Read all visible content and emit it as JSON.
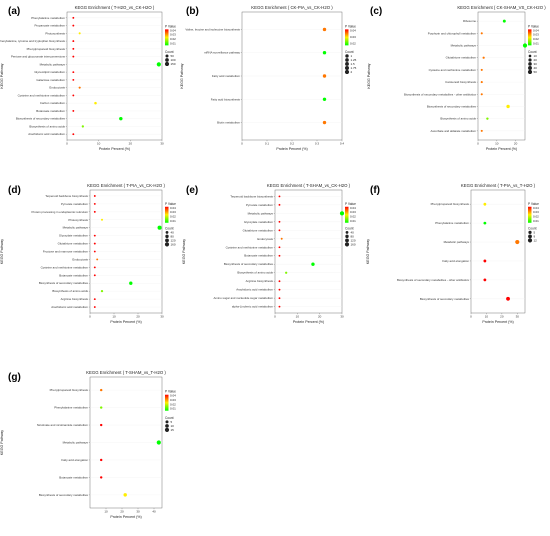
{
  "panels": [
    {
      "label": "(a)",
      "title": "KEGG Enrichment ( T-H2O_vs_CK-H2O )"
    },
    {
      "label": "(b)",
      "title": "KEGG Enrichment ( CK-PIA_vs_CK-H2O )"
    },
    {
      "label": "(c)",
      "title": "KEGG Enrichment ( CK-SHAM_VS_CK-H2O )"
    },
    {
      "label": "(d)",
      "title": "KEGG Enrichment ( T-PIA_vs_CK-H2O )"
    },
    {
      "label": "(e)",
      "title": "KEGG Enrichment ( T-SHAM_vs_CK-H2O )"
    },
    {
      "label": "(f)",
      "title": "KEGG Enrichment ( T-PIA_vs_T-H2O )"
    },
    {
      "label": "(g)",
      "title": "KEGG Enrichment ( T-SHAM_vs_T-H2O )"
    }
  ],
  "colors": {
    "low_p": "#00ff00",
    "mid_p": "#ffee00",
    "high_p": "#ff0000"
  },
  "chart_data": [
    {
      "type": "scatter",
      "title": "KEGG Enrichment ( T-H2O_vs_CK-H2O )",
      "xlabel": "Protein Percent (%)",
      "ylabel": "KEGG Pathway",
      "xlim": [
        0,
        30
      ],
      "xticks": [
        0,
        10,
        20,
        30
      ],
      "legend": {
        "count_title": "Count",
        "count_values": [
          50,
          100,
          150
        ],
        "p_title": "P Value",
        "p_ticks": [
          0.04,
          0.03,
          0.02,
          0.01
        ]
      },
      "categories": [
        "Phenylalanine metabolism",
        "Propanoate metabolism",
        "Photosynthesis",
        "Phenylalanine, tyrosine and tryptophan biosynthesis",
        "Phenylpropanoid biosynthesis",
        "Pentose and glucuronate interconversions",
        "Metabolic pathways",
        "Glycerolipid metabolism",
        "Galactose metabolism",
        "Endocytosis",
        "Cysteine and methionine metabolism",
        "Carbon metabolism",
        "Butanoate metabolism",
        "Biosynthesis of secondary metabolites",
        "Biosynthesis of amino acids",
        "Arachidonic acid metabolism"
      ],
      "x": [
        2,
        2,
        4,
        2,
        2,
        2,
        29,
        2,
        2,
        4,
        2,
        9,
        2,
        17,
        5,
        2
      ],
      "count": [
        4,
        4,
        8,
        4,
        4,
        4,
        150,
        4,
        4,
        10,
        4,
        25,
        4,
        80,
        15,
        4
      ],
      "pvalue": [
        0.05,
        0.05,
        0.03,
        0.05,
        0.05,
        0.05,
        0.01,
        0.05,
        0.05,
        0.04,
        0.05,
        0.03,
        0.05,
        0.01,
        0.02,
        0.05
      ]
    },
    {
      "type": "scatter",
      "title": "KEGG Enrichment ( CK-PIA_vs_CK-H2O )",
      "xlabel": "Protein Percent (%)",
      "ylabel": "KEGG Pathway",
      "xlim": [
        0.0,
        0.4
      ],
      "xticks": [
        0.0,
        0.1,
        0.2,
        0.3,
        0.4
      ],
      "legend": {
        "count_title": "Count",
        "count_values": [
          1.0,
          1.25,
          1.5,
          1.75,
          2.0
        ],
        "p_title": "P Value",
        "p_ticks": [
          0.04,
          0.03,
          0.02
        ]
      },
      "categories": [
        "Valine, leucine and isoleucine biosynthesis",
        "mRNA surveillance pathway",
        "Fatty acid metabolism",
        "Fatty acid biosynthesis",
        "Biotin metabolism"
      ],
      "x": [
        0.33,
        0.33,
        0.33,
        0.33,
        0.33
      ],
      "count": [
        1,
        1,
        1,
        1,
        1
      ],
      "pvalue": [
        0.04,
        0.01,
        0.04,
        0.01,
        0.04
      ]
    },
    {
      "type": "scatter",
      "title": "KEGG Enrichment ( CK-SHAM_VS_CK-H2O )",
      "xlabel": "Protein Percent (%)",
      "ylabel": "KEGG Pathway",
      "xlim": [
        0,
        25
      ],
      "xticks": [
        0,
        10,
        20
      ],
      "legend": {
        "count_title": "Count",
        "count_values": [
          10,
          20,
          30,
          40,
          50
        ],
        "p_title": "P Value",
        "p_ticks": [
          0.04,
          0.03,
          0.02,
          0.01
        ]
      },
      "categories": [
        "Ribosome",
        "Porphyrin and chlorophyll metabolism",
        "Metabolic pathways",
        "Glutathione metabolism",
        "Cysteine and methionine metabolism",
        "Carotenoid biosynthesis",
        "Biosynthesis of secondary metabolites - other antibiotics",
        "Biosynthesis of secondary metabolites",
        "Biosynthesis of amino acids",
        "Ascorbate and aldarate metabolism"
      ],
      "x": [
        14,
        2,
        25,
        3,
        2,
        2,
        2,
        16,
        5,
        2
      ],
      "count": [
        15,
        3,
        50,
        4,
        3,
        3,
        3,
        25,
        6,
        3
      ],
      "pvalue": [
        0.01,
        0.04,
        0.01,
        0.04,
        0.04,
        0.04,
        0.04,
        0.03,
        0.02,
        0.04
      ]
    },
    {
      "type": "scatter",
      "title": "KEGG Enrichment ( T-PIA_vs_CK-H2O )",
      "xlabel": "Protein Percent (%)",
      "ylabel": "KEGG Pathway",
      "xlim": [
        0,
        30
      ],
      "xticks": [
        0,
        10,
        20,
        30
      ],
      "legend": {
        "count_title": "Count",
        "count_values": [
          40,
          80,
          120,
          160
        ],
        "p_title": "P Value",
        "p_ticks": [
          0.04,
          0.03,
          0.02,
          0.01
        ]
      },
      "categories": [
        "Terpenoid backbone biosynthesis",
        "Pyruvate metabolism",
        "Protein processing in endoplasmic reticulum",
        "Photosynthesis",
        "Metabolic pathways",
        "Glyoxylate metabolism",
        "Glutathione metabolism",
        "Fructose and mannose metabolism",
        "Endocytosis",
        "Cysteine and methionine metabolism",
        "Butanoate metabolism",
        "Biosynthesis of secondary metabolites",
        "Biosynthesis of amino acids",
        "Arginine biosynthesis",
        "Arachidonic acid metabolism"
      ],
      "x": [
        2,
        2,
        2,
        5,
        29,
        2,
        2,
        2,
        3,
        2,
        2,
        17,
        5,
        2,
        2
      ],
      "count": [
        4,
        4,
        4,
        10,
        150,
        4,
        4,
        4,
        6,
        4,
        4,
        80,
        15,
        4,
        4
      ],
      "pvalue": [
        0.05,
        0.05,
        0.05,
        0.03,
        0.01,
        0.05,
        0.05,
        0.05,
        0.04,
        0.05,
        0.05,
        0.01,
        0.02,
        0.05,
        0.05
      ]
    },
    {
      "type": "scatter",
      "title": "KEGG Enrichment ( T-SHAM_vs_CK-H2O )",
      "xlabel": "Protein Percent (%)",
      "ylabel": "KEGG Pathway",
      "xlim": [
        0,
        30
      ],
      "xticks": [
        0,
        10,
        20,
        30
      ],
      "legend": {
        "count_title": "Count",
        "count_values": [
          40,
          80,
          120,
          160
        ],
        "p_title": "P Value",
        "p_ticks": [
          0.04,
          0.03,
          0.02,
          0.01
        ]
      },
      "categories": [
        "Terpenoid backbone biosynthesis",
        "Pyruvate metabolism",
        "Metabolic pathways",
        "Glyoxylate metabolism",
        "Glutathione metabolism",
        "Endocytosis",
        "Cysteine and methionine metabolism",
        "Butanoate metabolism",
        "Biosynthesis of secondary metabolites",
        "Biosynthesis of amino acids",
        "Arginine biosynthesis",
        "Arachidonic acid metabolism",
        "Amino sugar and nucleotide sugar metabolism",
        "alpha-Linolenic acid metabolism"
      ],
      "x": [
        2,
        2,
        30,
        2,
        2,
        3,
        2,
        2,
        17,
        5,
        2,
        2,
        2,
        2
      ],
      "count": [
        4,
        4,
        160,
        4,
        4,
        6,
        4,
        4,
        80,
        15,
        4,
        4,
        4,
        4
      ],
      "pvalue": [
        0.05,
        0.05,
        0.01,
        0.05,
        0.05,
        0.04,
        0.05,
        0.05,
        0.01,
        0.02,
        0.05,
        0.05,
        0.05,
        0.05
      ]
    },
    {
      "type": "scatter",
      "title": "KEGG Enrichment ( T-PIA_vs_T-H2O )",
      "xlabel": "Protein Percent (%)",
      "ylabel": "KEGG Pathway",
      "xlim": [
        0,
        35
      ],
      "xticks": [
        0,
        10,
        20,
        30
      ],
      "legend": {
        "count_title": "Count",
        "count_values": [
          5,
          9,
          12
        ],
        "p_title": "P Value",
        "p_ticks": [
          0.04,
          0.03,
          0.02,
          0.01
        ]
      },
      "categories": [
        "Phenylpropanoid biosynthesis",
        "Phenylalanine metabolism",
        "Metabolic pathways",
        "Fatty acid elongation",
        "Biosynthesis of secondary metabolites - other antibiotics",
        "Biosynthesis of secondary metabolites"
      ],
      "x": [
        9,
        9,
        30,
        9,
        9,
        24
      ],
      "count": [
        3,
        3,
        12,
        3,
        3,
        9
      ],
      "pvalue": [
        0.03,
        0.01,
        0.04,
        0.05,
        0.05,
        0.05
      ]
    },
    {
      "type": "scatter",
      "title": "KEGG Enrichment ( T-SHAM_vs_T-H2O )",
      "xlabel": "Protein Percent (%)",
      "ylabel": "KEGG Pathway",
      "xlim": [
        0,
        45
      ],
      "xticks": [
        10,
        20,
        30,
        40
      ],
      "legend": {
        "count_title": "Count",
        "count_values": [
          5,
          10,
          15
        ],
        "p_title": "P Value",
        "p_ticks": [
          0.04,
          0.03,
          0.02,
          0.01
        ]
      },
      "categories": [
        "Phenylpropanoid biosynthesis",
        "Phenylalanine metabolism",
        "Nicotinate and nicotinamide metabolism",
        "Metabolic pathways",
        "Fatty acid elongation",
        "Butanoate metabolism",
        "Biosynthesis of secondary metabolites"
      ],
      "x": [
        7,
        7,
        7,
        43,
        7,
        7,
        22
      ],
      "count": [
        2,
        2,
        2,
        15,
        2,
        2,
        8
      ],
      "pvalue": [
        0.04,
        0.02,
        0.05,
        0.01,
        0.05,
        0.05,
        0.03
      ]
    }
  ]
}
